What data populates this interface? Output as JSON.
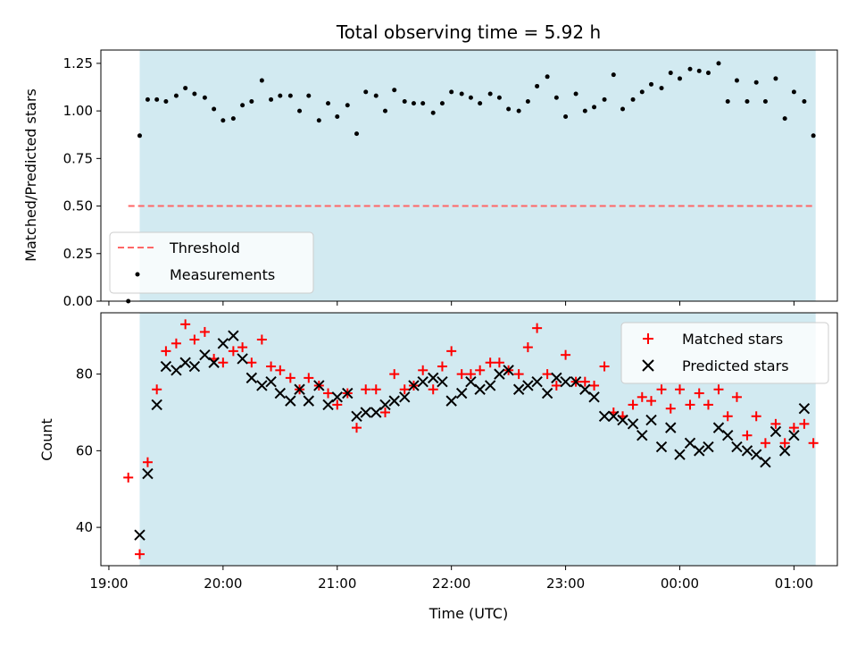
{
  "figure": {
    "title": "Total observing time = 5.92 h",
    "xlabel": "Time (UTC)"
  },
  "colors": {
    "span": "#add8e6",
    "threshold": "#ff6666",
    "matched": "#ff0000",
    "predicted": "#000000",
    "measurement": "#000000"
  },
  "chart_data": [
    {
      "type": "scatter",
      "panel": "top",
      "ylabel": "Matched/Predicted stars",
      "ylim": [
        0,
        1.32
      ],
      "yticks": [
        0.0,
        0.25,
        0.5,
        0.75,
        1.0,
        1.25
      ],
      "ytick_labels": [
        "0.00",
        "0.25",
        "0.50",
        "0.75",
        "1.00",
        "1.25"
      ],
      "xlim_hours": [
        18.93,
        25.38
      ],
      "shaded_span_hours": [
        19.27,
        25.19
      ],
      "legend_position": "lower-left",
      "legend": [
        "Threshold",
        "Measurements"
      ],
      "threshold": {
        "name": "Threshold",
        "value": 0.5,
        "x_hours": [
          19.17,
          25.19
        ]
      },
      "series": [
        {
          "name": "Measurements",
          "x_hours": [
            19.17,
            19.27,
            19.34,
            19.42,
            19.5,
            19.59,
            19.67,
            19.75,
            19.84,
            19.92,
            20.0,
            20.09,
            20.17,
            20.25,
            20.34,
            20.42,
            20.5,
            20.59,
            20.67,
            20.75,
            20.84,
            20.92,
            21.0,
            21.09,
            21.17,
            21.25,
            21.34,
            21.42,
            21.5,
            21.59,
            21.67,
            21.75,
            21.84,
            21.92,
            22.0,
            22.09,
            22.17,
            22.25,
            22.34,
            22.42,
            22.5,
            22.59,
            22.67,
            22.75,
            22.84,
            22.92,
            23.0,
            23.09,
            23.17,
            23.25,
            23.34,
            23.42,
            23.5,
            23.59,
            23.67,
            23.75,
            23.84,
            23.92,
            24.0,
            24.09,
            24.17,
            24.25,
            24.34,
            24.42,
            24.5,
            24.59,
            24.67,
            24.75,
            24.84,
            24.92,
            25.0,
            25.09,
            25.17
          ],
          "values": [
            0.0,
            0.87,
            1.06,
            1.06,
            1.05,
            1.08,
            1.12,
            1.09,
            1.07,
            1.01,
            0.95,
            0.96,
            1.03,
            1.05,
            1.16,
            1.06,
            1.08,
            1.08,
            1.0,
            1.08,
            0.95,
            1.04,
            0.97,
            1.03,
            0.88,
            1.1,
            1.08,
            1.0,
            1.11,
            1.05,
            1.04,
            1.04,
            0.99,
            1.04,
            1.1,
            1.09,
            1.07,
            1.04,
            1.09,
            1.07,
            1.01,
            1.0,
            1.05,
            1.13,
            1.18,
            1.07,
            0.97,
            1.09,
            1.0,
            1.02,
            1.06,
            1.19,
            1.01,
            1.06,
            1.1,
            1.14,
            1.12,
            1.2,
            1.17,
            1.22,
            1.21,
            1.2,
            1.25,
            1.05,
            1.16,
            1.05,
            1.15,
            1.05,
            1.17,
            0.96,
            1.1,
            1.05,
            0.87
          ]
        }
      ]
    },
    {
      "type": "scatter",
      "panel": "bottom",
      "ylabel": "Count",
      "ylim": [
        30,
        96
      ],
      "yticks": [
        40,
        60,
        80
      ],
      "ytick_labels": [
        "40",
        "60",
        "80"
      ],
      "xlim_hours": [
        18.93,
        25.38
      ],
      "xticks_hours": [
        19,
        20,
        21,
        22,
        23,
        24,
        25
      ],
      "xtick_labels": [
        "19:00",
        "20:00",
        "21:00",
        "22:00",
        "23:00",
        "00:00",
        "01:00"
      ],
      "shaded_span_hours": [
        19.27,
        25.19
      ],
      "legend_position": "upper-right",
      "legend": [
        "Matched stars",
        "Predicted stars"
      ],
      "series": [
        {
          "name": "Matched stars",
          "marker": "plus",
          "x_hours": [
            19.17,
            19.27,
            19.34,
            19.42,
            19.5,
            19.59,
            19.67,
            19.75,
            19.84,
            19.92,
            20.0,
            20.09,
            20.17,
            20.25,
            20.34,
            20.42,
            20.5,
            20.59,
            20.67,
            20.75,
            20.84,
            20.92,
            21.0,
            21.09,
            21.17,
            21.25,
            21.34,
            21.42,
            21.5,
            21.59,
            21.67,
            21.75,
            21.84,
            21.92,
            22.0,
            22.09,
            22.17,
            22.25,
            22.34,
            22.42,
            22.5,
            22.59,
            22.67,
            22.75,
            22.84,
            22.92,
            23.0,
            23.09,
            23.17,
            23.25,
            23.34,
            23.42,
            23.5,
            23.59,
            23.67,
            23.75,
            23.84,
            23.92,
            24.0,
            24.09,
            24.17,
            24.25,
            24.34,
            24.42,
            24.5,
            24.59,
            24.67,
            24.75,
            24.84,
            24.92,
            25.0,
            25.09,
            25.17
          ],
          "values": [
            53,
            33,
            57,
            76,
            86,
            88,
            93,
            89,
            91,
            84,
            83,
            86,
            87,
            83,
            89,
            82,
            81,
            79,
            76,
            79,
            77,
            75,
            72,
            75,
            66,
            76,
            76,
            70,
            80,
            76,
            77,
            81,
            76,
            82,
            86,
            80,
            80,
            81,
            83,
            83,
            81,
            80,
            87,
            92,
            80,
            77,
            85,
            78,
            78,
            77,
            82,
            70,
            69,
            72,
            74,
            73,
            76,
            71,
            76,
            72,
            75,
            72,
            76,
            69,
            74,
            64,
            69,
            62,
            67,
            62,
            66,
            67,
            62
          ]
        },
        {
          "name": "Predicted stars",
          "marker": "x",
          "x_hours": [
            19.27,
            19.34,
            19.42,
            19.5,
            19.59,
            19.67,
            19.75,
            19.84,
            19.92,
            20.0,
            20.09,
            20.17,
            20.25,
            20.34,
            20.42,
            20.5,
            20.59,
            20.67,
            20.75,
            20.84,
            20.92,
            21.0,
            21.09,
            21.17,
            21.25,
            21.34,
            21.42,
            21.5,
            21.59,
            21.67,
            21.75,
            21.84,
            21.92,
            22.0,
            22.09,
            22.17,
            22.25,
            22.34,
            22.42,
            22.5,
            22.59,
            22.67,
            22.75,
            22.84,
            22.92,
            23.0,
            23.09,
            23.17,
            23.25,
            23.34,
            23.42,
            23.5,
            23.59,
            23.67,
            23.75,
            23.84,
            23.92,
            24.0,
            24.09,
            24.17,
            24.25,
            24.34,
            24.42,
            24.5,
            24.59,
            24.67,
            24.75,
            24.84,
            24.92,
            25.0,
            25.09,
            25.17
          ],
          "values": [
            38,
            54,
            72,
            82,
            81,
            83,
            82,
            85,
            83,
            88,
            90,
            84,
            79,
            77,
            78,
            75,
            73,
            76,
            73,
            77,
            72,
            74,
            75,
            69,
            70,
            70,
            72,
            73,
            74,
            77,
            78,
            79,
            78,
            73,
            75,
            78,
            76,
            77,
            80,
            81,
            76,
            77,
            78,
            75,
            79,
            78,
            78,
            76,
            74,
            69,
            69,
            68,
            67,
            64,
            68,
            61,
            66,
            59,
            62,
            60,
            61,
            66,
            64,
            61,
            60,
            59,
            57,
            65,
            60,
            64,
            71,
            null
          ]
        }
      ]
    }
  ]
}
